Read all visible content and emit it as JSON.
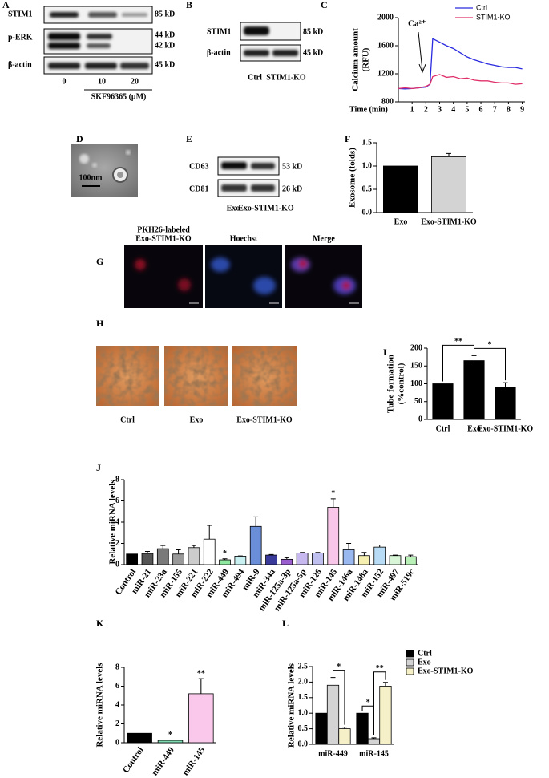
{
  "panel_labels": [
    "A",
    "B",
    "C",
    "D",
    "E",
    "F",
    "G",
    "H",
    "I",
    "J",
    "K",
    "L"
  ],
  "blot_a": {
    "rows": [
      "STIM1",
      "p-ERK",
      "β-actin"
    ],
    "sizes": [
      "85 kD",
      "44 kD",
      "42 kD",
      "45 kD"
    ],
    "lanes": [
      "0",
      "10",
      "20"
    ],
    "treatment": "SKF96365 (μM)"
  },
  "blot_b": {
    "rows": [
      "STIM1",
      "β-actin"
    ],
    "sizes": [
      "85 kD",
      "45 kD"
    ],
    "lanes": [
      "Ctrl",
      "STIM1-KO"
    ]
  },
  "image_d": {
    "scale_bar": "100nm"
  },
  "blot_e": {
    "rows": [
      "CD63",
      "CD81"
    ],
    "sizes": [
      "53 kD",
      "26 kD"
    ],
    "lanes": [
      "Exo",
      "Exo-STIM1-KO"
    ]
  },
  "images_g": {
    "titles": [
      [
        "PKH26-labeled",
        "Exo-STIM1-KO"
      ],
      [
        "Hoechst"
      ],
      [
        "Merge"
      ]
    ]
  },
  "images_h": {
    "labels": [
      "Ctrl",
      "Exo",
      "Exo-STIM1-KO"
    ]
  },
  "chart_data": [
    {
      "type": "line",
      "y_label": [
        "Calcium amount",
        "(RFU)"
      ],
      "x_label": "Time (min)",
      "annotation": "Ca²⁺",
      "x": [
        0,
        0.5,
        1,
        1.5,
        2,
        2.3,
        2.5,
        3,
        3.5,
        4,
        4.5,
        5,
        5.5,
        6,
        6.5,
        7,
        7.5,
        8,
        8.5,
        9
      ],
      "xlim": [
        0,
        9.2
      ],
      "xticks": [
        1,
        2,
        3,
        4,
        5,
        6,
        7,
        8,
        9
      ],
      "ylim": [
        800,
        2000
      ],
      "yticks": [
        800,
        1200,
        1600,
        2000
      ],
      "legend": "upper right",
      "series": [
        {
          "name": "Ctrl",
          "color": "#2a2ae0",
          "values": [
            990,
            985,
            990,
            1000,
            1010,
            1050,
            1700,
            1650,
            1600,
            1560,
            1500,
            1440,
            1400,
            1370,
            1340,
            1320,
            1300,
            1290,
            1290,
            1270
          ]
        },
        {
          "name": "STIM1-KO",
          "color": "#e0306a",
          "values": [
            990,
            1000,
            990,
            1000,
            1020,
            1050,
            1160,
            1190,
            1150,
            1160,
            1130,
            1140,
            1110,
            1100,
            1100,
            1080,
            1070,
            1070,
            1050,
            1060
          ]
        }
      ]
    },
    {
      "type": "bar",
      "y_label": "Exosome (folds)",
      "categories": [
        "Exo",
        "Exo-STIM1-KO"
      ],
      "values": [
        1.0,
        1.2
      ],
      "errors": [
        null,
        0.07
      ],
      "colors": [
        "#000000",
        "#d3d3d3"
      ],
      "ylim": [
        0,
        1.5
      ],
      "yticks": [
        {
          "value": 0,
          "label": "0.0"
        },
        0.5,
        {
          "value": 1,
          "label": "1.0"
        },
        1.5
      ]
    },
    {
      "type": "bar",
      "y_label": [
        "Tube formation",
        "(%control)"
      ],
      "categories": [
        "Ctrl",
        "Exo",
        "Exo-STIM1-KO"
      ],
      "values": [
        100,
        165,
        90
      ],
      "errors": [
        null,
        14,
        13
      ],
      "color": "#000000",
      "ylim": [
        0,
        200
      ],
      "yticks": [
        0,
        50,
        100,
        150,
        200
      ],
      "brackets": [
        {
          "from": "Ctrl",
          "to": "Exo",
          "label": "**"
        },
        {
          "from": "Exo",
          "to": "Exo-STIM1-KO",
          "label": "*"
        }
      ]
    },
    {
      "type": "bar",
      "y_label": "Relative miRNA levels",
      "categories": [
        "Control",
        "miR-21",
        "miR-23a",
        "miR-155",
        "miR-221",
        "miR-222",
        "miR-449",
        "miR-494",
        "miR-9",
        "miR-34a",
        "miR-125a-3p",
        "miR-125a-5p",
        "miR-126",
        "miR-145",
        "miR-146a",
        "miR-148a",
        "miR-152",
        "miR-497",
        "miR-519c"
      ],
      "values": [
        1.0,
        1.05,
        1.5,
        1.0,
        1.6,
        2.4,
        0.45,
        0.8,
        3.6,
        0.9,
        0.5,
        1.1,
        1.1,
        5.4,
        1.4,
        0.85,
        1.65,
        0.85,
        0.75
      ],
      "errors": [
        null,
        0.2,
        0.3,
        0.4,
        0.2,
        1.3,
        0.1,
        0.02,
        0.9,
        0.05,
        0.15,
        0.05,
        0.05,
        0.8,
        0.6,
        0.3,
        0.2,
        0.05,
        0.15
      ],
      "colors": [
        "#000000",
        "#555555",
        "#7a7a7a",
        "#999999",
        "#cccccc",
        "#ffffff",
        "#8ee8a0",
        "#c8f0f0",
        "#6a8fd8",
        "#3a3a9a",
        "#9a5ecf",
        "#c8b8f0",
        "#c0c0f0",
        "#f7c6e8",
        "#9ab8f0",
        "#f5f0b0",
        "#b8dcf5",
        "#d8f5d8",
        "#b8f0b8"
      ],
      "significance": [
        null,
        null,
        null,
        null,
        null,
        null,
        "*",
        null,
        null,
        null,
        null,
        null,
        null,
        "*",
        null,
        null,
        null,
        null,
        null
      ],
      "ylim": [
        0,
        8
      ],
      "yticks": [
        0,
        2,
        4,
        6,
        8
      ]
    },
    {
      "type": "bar",
      "y_label": "Relative miRNA levels",
      "categories": [
        "Control",
        "miR-449",
        "miR-145"
      ],
      "values": [
        1.0,
        0.25,
        5.2
      ],
      "errors": [
        null,
        0.05,
        1.6
      ],
      "colors": [
        "#000000",
        "#7fd8b0",
        "#f9c8ea"
      ],
      "significance": [
        null,
        "*",
        "**"
      ],
      "ylim": [
        0,
        8
      ],
      "yticks": [
        0,
        2,
        4,
        6,
        8
      ]
    },
    {
      "type": "grouped_bar",
      "y_label": "Relative miRNA levels",
      "categories": [
        "miR-449",
        "miR-145"
      ],
      "legend": "upper right",
      "series": [
        {
          "name": "Ctrl",
          "color": "#000000",
          "values": [
            1.0,
            1.0
          ],
          "errors": [
            null,
            null
          ]
        },
        {
          "name": "Exo",
          "color": "#d3d3d3",
          "values": [
            1.9,
            0.18
          ],
          "errors": [
            0.25,
            0.03
          ]
        },
        {
          "name": "Exo-STIM1-KO",
          "color": "#f5f0c8",
          "values": [
            0.5,
            1.87
          ],
          "errors": [
            0.05,
            0.12
          ]
        }
      ],
      "ylim": [
        0,
        2.5
      ],
      "yticks": [
        {
          "value": 0,
          "label": "0.0"
        },
        0.5,
        {
          "value": 1,
          "label": "1.0"
        },
        1.5,
        {
          "value": 2,
          "label": "2.0"
        },
        2.5
      ],
      "brackets": [
        {
          "category": "miR-449",
          "from": "Exo",
          "to": "Exo-STIM1-KO",
          "label": "*"
        },
        {
          "category": "miR-145",
          "from": "Ctrl",
          "to": "Exo",
          "label": "*"
        },
        {
          "category": "miR-145",
          "from": "Exo",
          "to": "Exo-STIM1-KO",
          "label": "**"
        }
      ]
    }
  ]
}
